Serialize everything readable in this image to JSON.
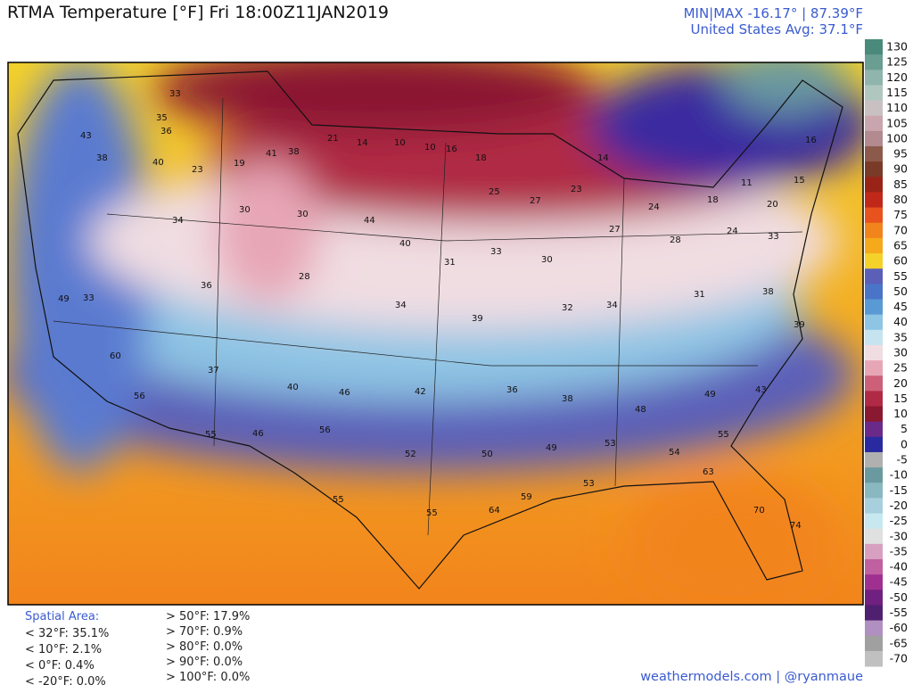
{
  "header": {
    "title": "RTMA Temperature [°F]  Fri 18:00Z11JAN2019",
    "minmax": "MIN|MAX -16.17° | 87.39°F",
    "average": "United States Avg: 37.1°F"
  },
  "stations": [
    33,
    35,
    36,
    43,
    38,
    40,
    23,
    19,
    41,
    38,
    21,
    14,
    10,
    10,
    16,
    18,
    25,
    27,
    23,
    14,
    24,
    18,
    11,
    15,
    16,
    20,
    34,
    30,
    30,
    44,
    40,
    31,
    33,
    30,
    27,
    28,
    24,
    33,
    49,
    33,
    36,
    28,
    34,
    39,
    32,
    34,
    31,
    38,
    39,
    60,
    37,
    40,
    46,
    42,
    36,
    38,
    48,
    49,
    43,
    56,
    55,
    46,
    56,
    52,
    50,
    49,
    53,
    54,
    55,
    55,
    55,
    64,
    59,
    53,
    63,
    70,
    74
  ],
  "colorbar": {
    "labels": [
      130,
      125,
      120,
      115,
      110,
      105,
      100,
      95,
      90,
      85,
      80,
      75,
      70,
      65,
      60,
      55,
      50,
      45,
      40,
      35,
      30,
      25,
      20,
      15,
      10,
      5,
      0,
      -5,
      -10,
      -15,
      -20,
      -25,
      -30,
      -35,
      -40,
      -45,
      -50,
      -55,
      -60,
      -65,
      -70
    ],
    "colors": [
      "#4a8a7a",
      "#6a9e92",
      "#8fb5ac",
      "#b0c7c0",
      "#c9c0c2",
      "#c9a6ae",
      "#b28a90",
      "#8c5a4a",
      "#7a3a28",
      "#9a2318",
      "#c0281a",
      "#e8521c",
      "#f2841c",
      "#f7a91c",
      "#f4d22a",
      "#5b5fb8",
      "#4a74c8",
      "#5a9ad4",
      "#8ec4e4",
      "#c6e4f0",
      "#f0dde2",
      "#e7a6b6",
      "#cc6078",
      "#b02a45",
      "#8a1830",
      "#6a2a8a",
      "#2a2aa0",
      "#b0b0b0",
      "#6a9aa0",
      "#8ab8c0",
      "#a8d0dc",
      "#c8e8f0",
      "#e0e0e0",
      "#d8a0c0",
      "#c060a0",
      "#a03090",
      "#702080",
      "#502070",
      "#b090c0",
      "#a0a0a0",
      "#c0c0c0"
    ]
  },
  "spatial_area": {
    "heading": "Spatial Area:",
    "below": [
      "< 32°F: 35.1%",
      "< 10°F: 2.1%",
      "< 0°F: 0.4%",
      "< -20°F: 0.0%"
    ],
    "above": [
      "> 50°F: 17.9%",
      "> 70°F: 0.9%",
      "> 80°F: 0.0%",
      "> 90°F: 0.0%",
      "> 100°F: 0.0%"
    ]
  },
  "footer": "weathermodels.com | @ryanmaue"
}
